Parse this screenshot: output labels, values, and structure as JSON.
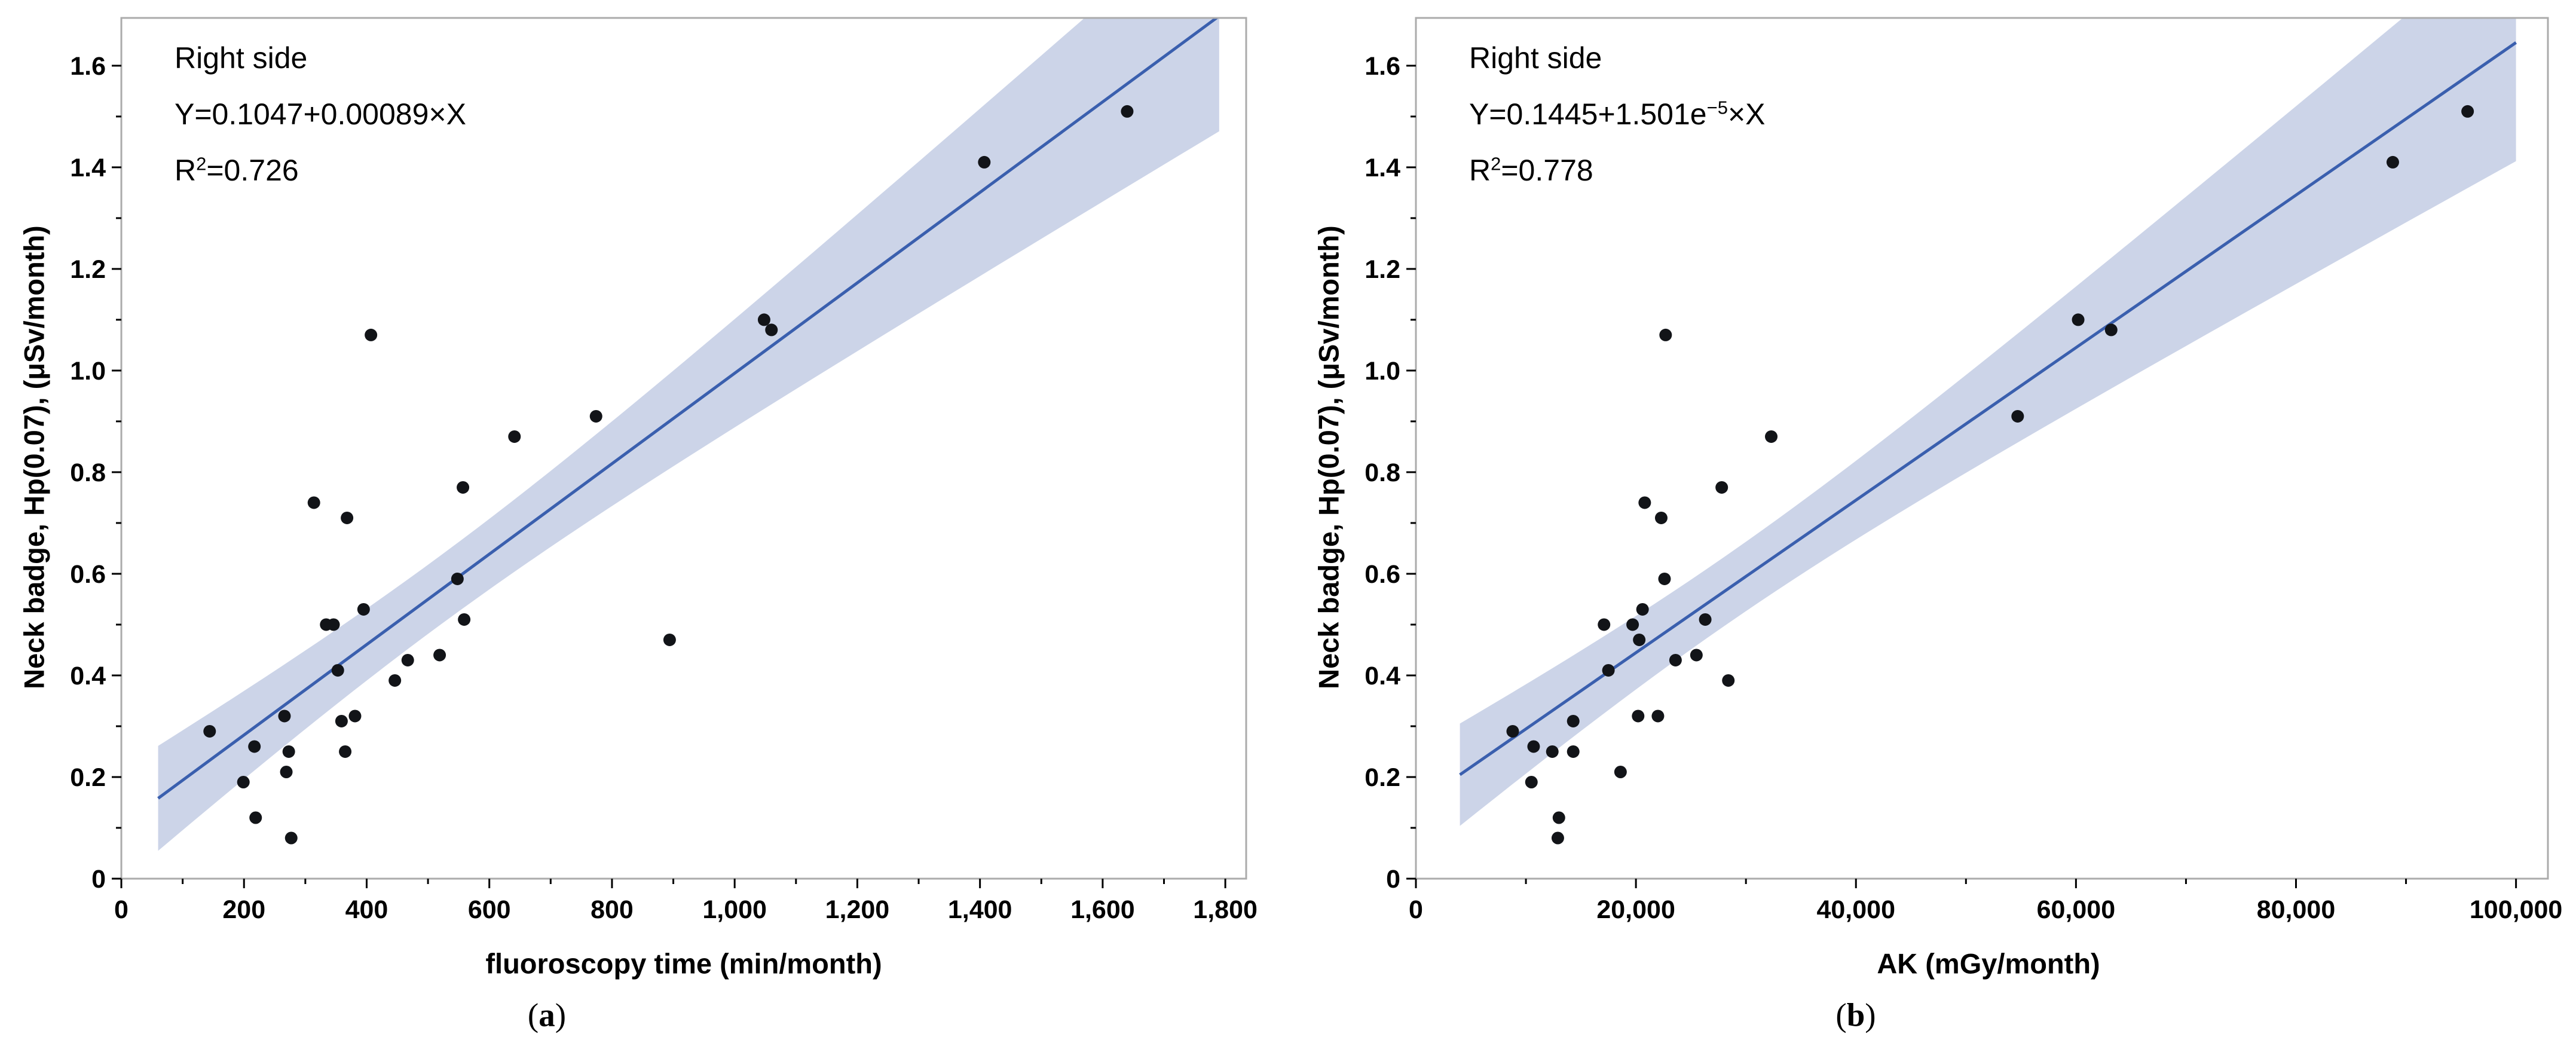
{
  "page": {
    "background": "#ffffff"
  },
  "colors": {
    "regression_line": "#3a5fae",
    "confidence_band": "#ccd4e8",
    "data_point": "#121418",
    "plot_frame": "#ababab",
    "tick_mark": "#000000",
    "text": "#000000"
  },
  "panels": [
    {
      "caption_open": "(",
      "caption_letter": "a",
      "caption_close": ")",
      "annotation": {
        "title": "Right side",
        "eq_pre": "Y=0.1047+0.00089×X",
        "eq_sup": "",
        "eq_post": "",
        "r2_pre": "R",
        "r2_sup": "2",
        "r2_post": "=0.726"
      },
      "xlabel": "fluoroscopy time (min/month)",
      "ylabel": "Neck badge, Hp(0.07), (μSv/month)"
    },
    {
      "caption_open": "(",
      "caption_letter": "b",
      "caption_close": ")",
      "annotation": {
        "title": "Right side",
        "eq_pre": "Y=0.1445+1.501e",
        "eq_sup": "−5",
        "eq_post": "×X",
        "r2_pre": "R",
        "r2_sup": "2",
        "r2_post": "=0.778"
      },
      "xlabel": "AK (mGy/month)",
      "ylabel": "Neck badge, Hp(0.07), (μSv/month)"
    }
  ],
  "chart_data": [
    {
      "type": "scatter",
      "title": "Right side",
      "equation": "Y=0.1047+0.00089×X",
      "r_squared": 0.726,
      "xlabel": "fluoroscopy time (min/month)",
      "ylabel": "Neck badge, Hp(0.07), (μSv/month)",
      "xlim": [
        0,
        1834
      ],
      "ylim": [
        0,
        1.694
      ],
      "grid": false,
      "legend": false,
      "xticks_major": [
        0,
        200,
        400,
        600,
        800,
        1000,
        1200,
        1400,
        1600,
        1800
      ],
      "xtick_labels": [
        "0",
        "200",
        "400",
        "600",
        "800",
        "1,000",
        "1,200",
        "1,400",
        "1,600",
        "1,800"
      ],
      "xtick_minor_step": 100,
      "yticks_major": [
        0,
        0.2,
        0.4,
        0.6,
        0.8,
        1.0,
        1.2,
        1.4,
        1.6
      ],
      "ytick_labels": [
        "0",
        "0.2",
        "0.4",
        "0.6",
        "0.8",
        "1.0",
        "1.2",
        "1.4",
        "1.6"
      ],
      "ytick_minor_step": 0.1,
      "regression": {
        "intercept": 0.1047,
        "slope": 0.00089,
        "x_start": 60,
        "x_end": 1790
      },
      "ci_band": {
        "base_half_width": 0.068,
        "spread_per_x": 0.00017,
        "center_x": 517
      },
      "points": [
        [
          144,
          0.29
        ],
        [
          199,
          0.19
        ],
        [
          217,
          0.26
        ],
        [
          219,
          0.12
        ],
        [
          266,
          0.32
        ],
        [
          269,
          0.21
        ],
        [
          273,
          0.25
        ],
        [
          277,
          0.08
        ],
        [
          314,
          0.74
        ],
        [
          334,
          0.5
        ],
        [
          346,
          0.5
        ],
        [
          353,
          0.41
        ],
        [
          359,
          0.31
        ],
        [
          365,
          0.25
        ],
        [
          368,
          0.71
        ],
        [
          381,
          0.32
        ],
        [
          395,
          0.53
        ],
        [
          407,
          1.07
        ],
        [
          446,
          0.39
        ],
        [
          467,
          0.43
        ],
        [
          519,
          0.44
        ],
        [
          548,
          0.59
        ],
        [
          557,
          0.77
        ],
        [
          559,
          0.51
        ],
        [
          641,
          0.87
        ],
        [
          774,
          0.91
        ],
        [
          894,
          0.47
        ],
        [
          1048,
          1.1
        ],
        [
          1060,
          1.08
        ],
        [
          1407,
          1.41
        ],
        [
          1640,
          1.51
        ]
      ]
    },
    {
      "type": "scatter",
      "title": "Right side",
      "equation": "Y=0.1445+1.501e−5×X",
      "r_squared": 0.778,
      "xlabel": "AK (mGy/month)",
      "ylabel": "Neck badge, Hp(0.07), (μSv/month)",
      "xlim": [
        0,
        102900
      ],
      "ylim": [
        0,
        1.694
      ],
      "grid": false,
      "legend": false,
      "xticks_major": [
        0,
        20000,
        40000,
        60000,
        80000,
        100000
      ],
      "xtick_labels": [
        "0",
        "20,000",
        "40,000",
        "60,000",
        "80,000",
        "100,000"
      ],
      "xtick_minor_step": 10000,
      "yticks_major": [
        0,
        0.2,
        0.4,
        0.6,
        0.8,
        1.0,
        1.2,
        1.4,
        1.6
      ],
      "ytick_labels": [
        "0",
        "0.2",
        "0.4",
        "0.6",
        "0.8",
        "1.0",
        "1.2",
        "1.4",
        "1.6"
      ],
      "ytick_minor_step": 0.1,
      "regression": {
        "intercept": 0.1445,
        "slope": 1.501e-05,
        "x_start": 4000,
        "x_end": 100000
      },
      "ci_band": {
        "base_half_width": 0.068,
        "spread_per_x": 3.1e-06,
        "center_x": 27990
      },
      "points": [
        [
          8800,
          0.29
        ],
        [
          10500,
          0.19
        ],
        [
          10700,
          0.26
        ],
        [
          12400,
          0.25
        ],
        [
          12900,
          0.08
        ],
        [
          13000,
          0.12
        ],
        [
          14300,
          0.31
        ],
        [
          14300,
          0.25
        ],
        [
          17100,
          0.5
        ],
        [
          17500,
          0.41
        ],
        [
          18600,
          0.21
        ],
        [
          19700,
          0.5
        ],
        [
          20200,
          0.32
        ],
        [
          20300,
          0.47
        ],
        [
          20600,
          0.53
        ],
        [
          20800,
          0.74
        ],
        [
          22000,
          0.32
        ],
        [
          22300,
          0.71
        ],
        [
          22600,
          0.59
        ],
        [
          22700,
          1.07
        ],
        [
          23600,
          0.43
        ],
        [
          25500,
          0.44
        ],
        [
          26300,
          0.51
        ],
        [
          27800,
          0.77
        ],
        [
          28400,
          0.39
        ],
        [
          32300,
          0.87
        ],
        [
          54700,
          0.91
        ],
        [
          60200,
          1.1
        ],
        [
          63200,
          1.08
        ],
        [
          88800,
          1.41
        ],
        [
          95600,
          1.51
        ]
      ]
    }
  ]
}
